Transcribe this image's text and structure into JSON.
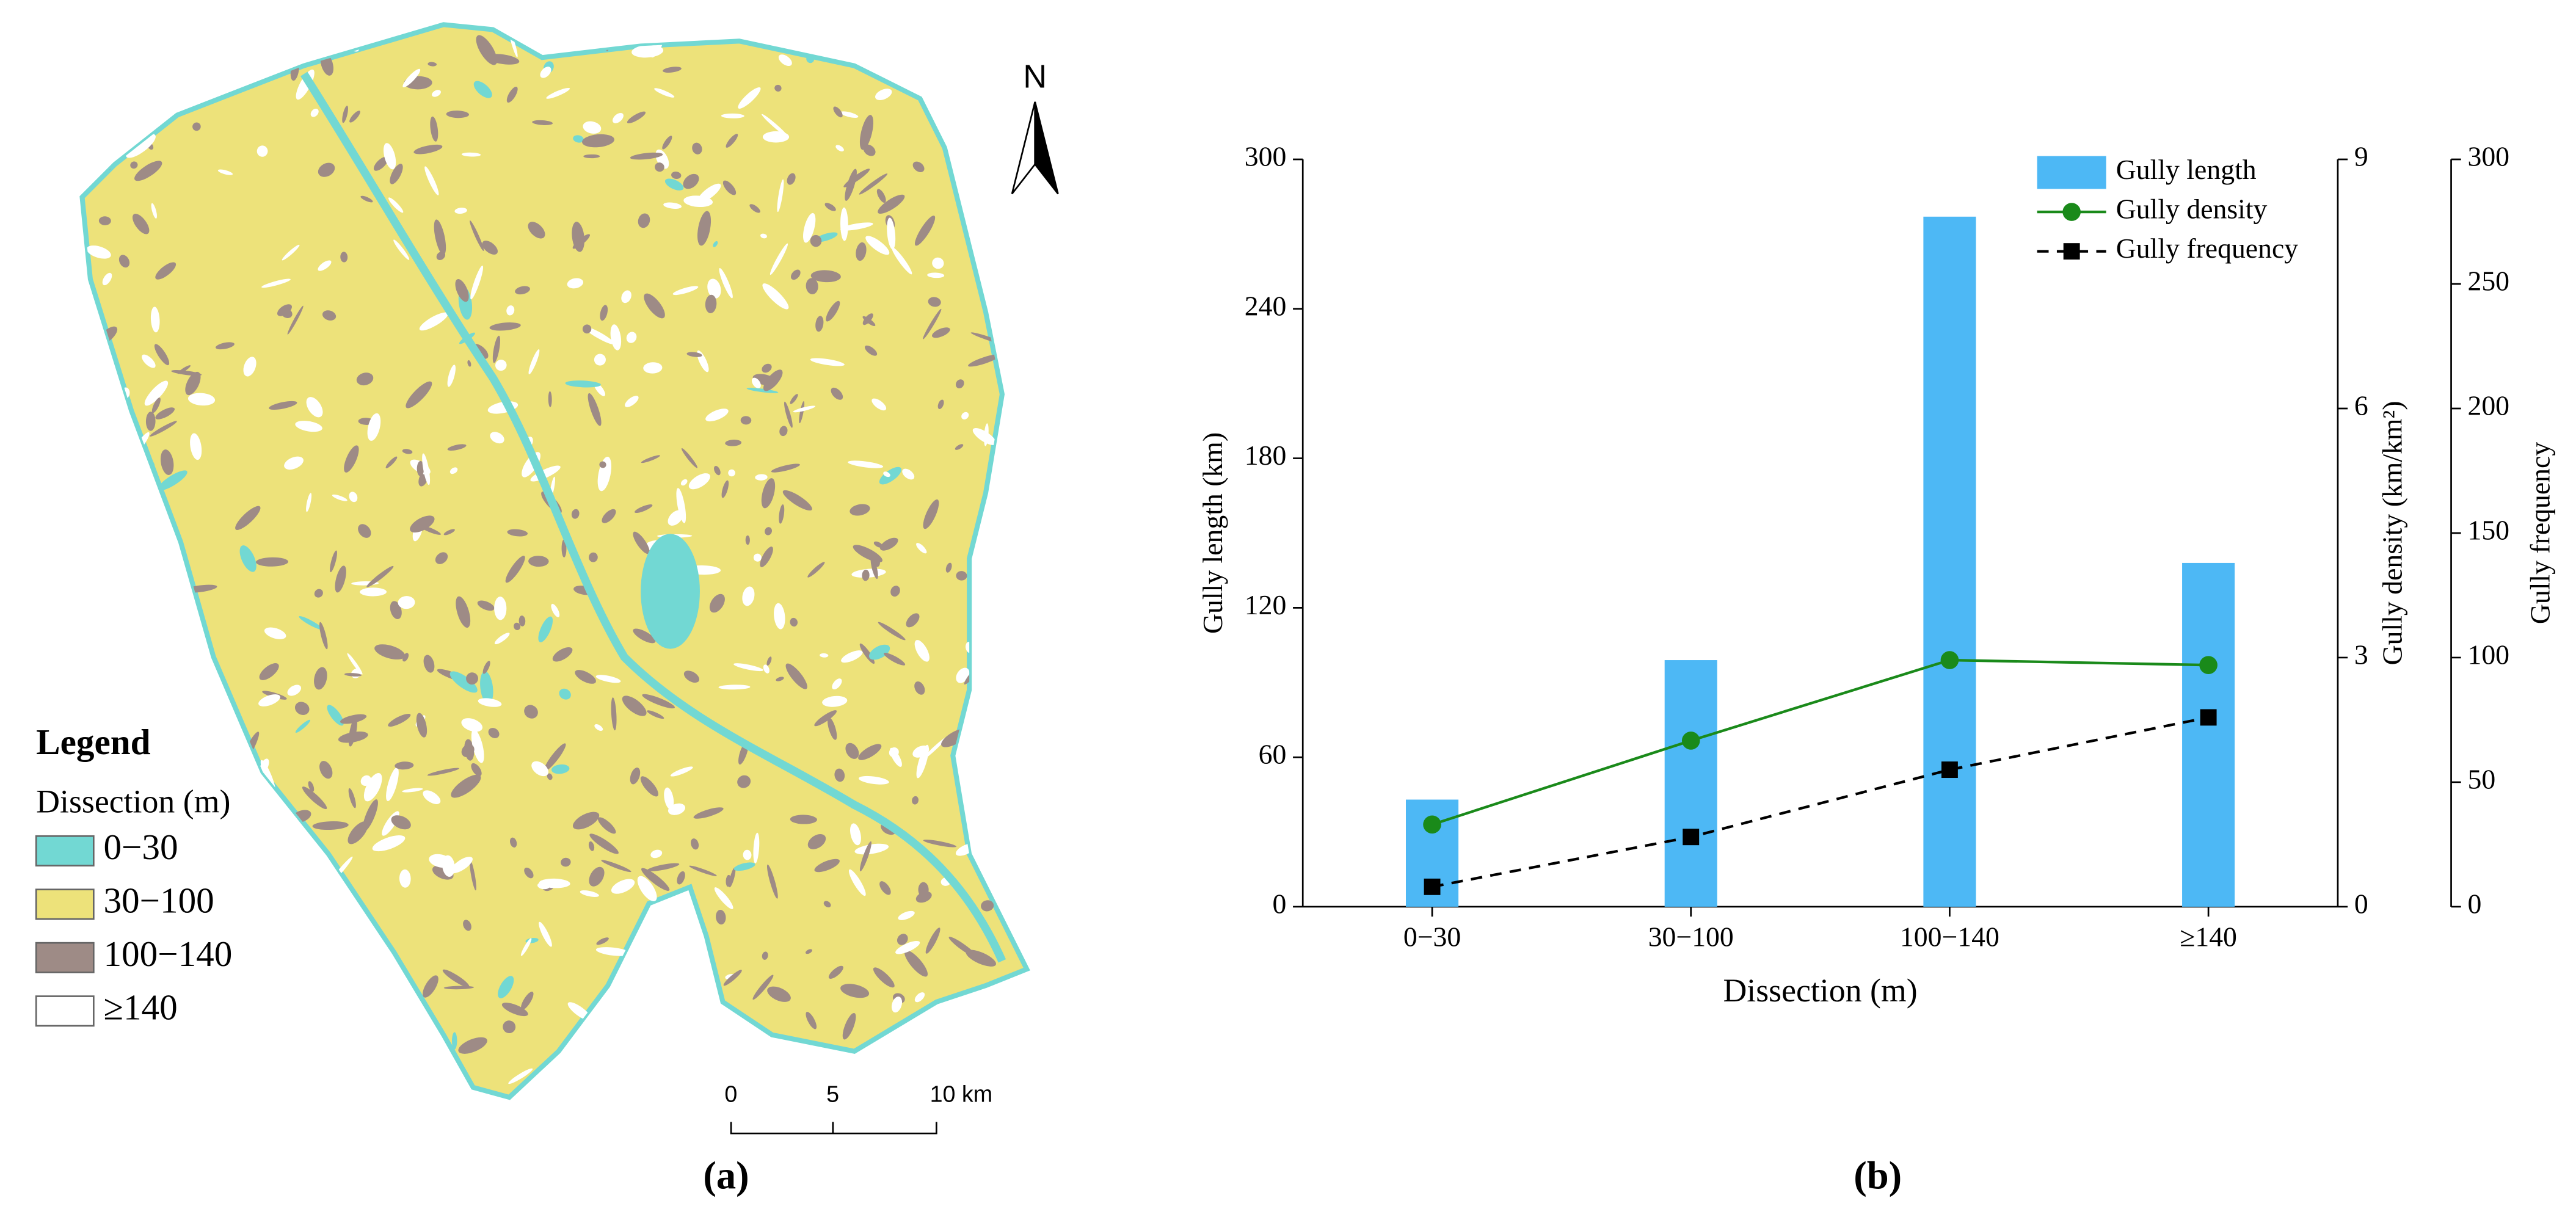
{
  "map": {
    "north": "N",
    "legend": {
      "title": "Legend",
      "subtitle": "Dissection (m)",
      "items": [
        {
          "label": "0−30",
          "color": "#72d8d3"
        },
        {
          "label": "30−100",
          "color": "#ede27a"
        },
        {
          "label": "100−140",
          "color": "#9e8b86"
        },
        {
          "label": "≥140",
          "color": "#ffffff"
        }
      ]
    },
    "scale_bar": {
      "labels": [
        "0",
        "5",
        "10 km"
      ]
    },
    "caption": "(a)"
  },
  "chart_data": {
    "type": "bar",
    "caption": "(b)",
    "xlabel": "Dissection (m)",
    "ylabel": "Gully length (km)",
    "y2label": "Gully density (km/km²)",
    "y3label": "Gully frequency",
    "categories": [
      "0−30",
      "30−100",
      "100−140",
      "≥140"
    ],
    "ylim": [
      0,
      300
    ],
    "yticks": [
      0,
      60,
      120,
      180,
      240,
      300
    ],
    "y2lim": [
      0,
      9
    ],
    "y2ticks": [
      0,
      3,
      6,
      9
    ],
    "y3lim": [
      0,
      300
    ],
    "y3ticks": [
      0,
      50,
      100,
      150,
      200,
      250,
      300
    ],
    "legend": "upper right",
    "series": [
      {
        "name": "Gully length",
        "type": "bar",
        "color": "#4db8f5",
        "values": [
          43,
          99,
          277,
          138
        ]
      },
      {
        "name": "Gully density",
        "type": "line",
        "marker": "circle",
        "color": "#1a8a1a",
        "axis": "y2",
        "values": [
          0.99,
          2.0,
          2.97,
          2.91
        ]
      },
      {
        "name": "Gully frequency",
        "type": "line",
        "marker": "square",
        "dashed": true,
        "color": "#000000",
        "axis": "y3",
        "values": [
          8,
          28,
          55,
          76
        ]
      }
    ]
  }
}
